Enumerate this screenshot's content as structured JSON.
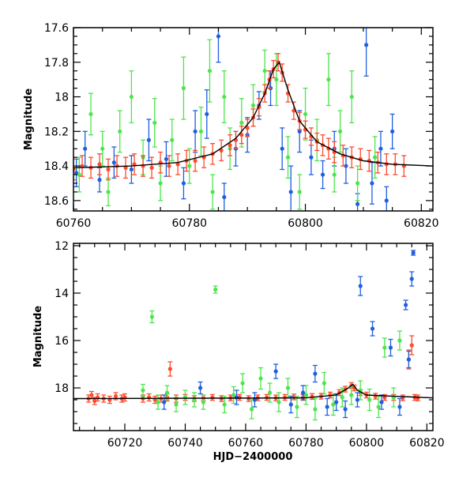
{
  "colors": {
    "blue": "#1f5fe0",
    "green": "#4ce64c",
    "red": "#ff4a2e",
    "model": "#000000",
    "frame": "#000000"
  },
  "chart_data": [
    {
      "type": "scatter",
      "title": "",
      "xlabel": "",
      "ylabel": "Magnitude",
      "xlim": [
        60760,
        60822
      ],
      "ylim": [
        18.66,
        17.6
      ],
      "y_inverted": true,
      "x_ticks": [
        60760,
        60780,
        60800,
        60820
      ],
      "y_ticks": [
        17.6,
        17.8,
        18,
        18.2,
        18.4,
        18.6
      ],
      "y_tick_labels": [
        "17.6",
        "17.8",
        "18",
        "18.2",
        "18.4",
        "18.6"
      ],
      "grid": false,
      "legend": "none",
      "error_bars": true,
      "model_curve": {
        "x": [
          60760,
          60770,
          60778,
          60784,
          60788,
          60791,
          60793,
          60794.5,
          60795.5,
          60797,
          60799,
          60802,
          60806,
          60810,
          60815,
          60822
        ],
        "y": [
          18.41,
          18.4,
          18.38,
          18.33,
          18.24,
          18.12,
          17.98,
          17.84,
          17.8,
          17.96,
          18.14,
          18.26,
          18.33,
          18.37,
          18.39,
          18.4
        ]
      },
      "series": [
        {
          "color": "blue",
          "x": [
            60760.5,
            60762,
            60764.5,
            60767,
            60770,
            60773,
            60776,
            60779,
            60781,
            60783,
            60785,
            60786,
            60788,
            60790,
            60792,
            60794,
            60796,
            60797.5,
            60799,
            60801,
            60803,
            60805,
            60807,
            60809,
            60810.5,
            60811.5,
            60813,
            60814,
            60815
          ],
          "y": [
            18.44,
            18.3,
            18.48,
            18.38,
            18.42,
            18.25,
            18.36,
            18.5,
            18.2,
            18.1,
            17.65,
            18.58,
            18.3,
            18.22,
            18.05,
            17.95,
            18.3,
            18.55,
            18.2,
            18.35,
            18.45,
            18.3,
            18.4,
            18.62,
            17.7,
            18.5,
            18.3,
            18.6,
            18.2
          ],
          "yerr": [
            0.08,
            0.1,
            0.07,
            0.09,
            0.08,
            0.12,
            0.1,
            0.09,
            0.12,
            0.14,
            0.15,
            0.08,
            0.1,
            0.1,
            0.08,
            0.1,
            0.12,
            0.15,
            0.12,
            0.1,
            0.08,
            0.1,
            0.1,
            0.06,
            0.18,
            0.12,
            0.1,
            0.08,
            0.1
          ]
        },
        {
          "color": "green",
          "x": [
            60761,
            60763,
            60765,
            60766,
            60768,
            60770,
            60772,
            60774,
            60775,
            60777,
            60779,
            60780,
            60782,
            60783.5,
            60784,
            60786,
            60787,
            60789,
            60791,
            60793,
            60795,
            60797,
            60799,
            60800,
            60802,
            60804,
            60805,
            60806,
            60808,
            60809,
            60812
          ],
          "y": [
            18.45,
            18.1,
            18.3,
            18.55,
            18.2,
            18.0,
            18.35,
            18.15,
            18.5,
            18.25,
            17.95,
            18.4,
            18.2,
            17.85,
            18.55,
            18.0,
            18.3,
            18.15,
            18.05,
            17.85,
            17.9,
            18.35,
            18.55,
            18.1,
            18.25,
            17.9,
            18.45,
            18.2,
            18.0,
            18.5,
            18.35
          ],
          "yerr": [
            0.1,
            0.12,
            0.1,
            0.08,
            0.12,
            0.15,
            0.1,
            0.14,
            0.1,
            0.12,
            0.18,
            0.1,
            0.14,
            0.18,
            0.1,
            0.15,
            0.12,
            0.14,
            0.12,
            0.12,
            0.15,
            0.12,
            0.1,
            0.15,
            0.12,
            0.15,
            0.1,
            0.12,
            0.15,
            0.1,
            0.12
          ]
        },
        {
          "color": "red",
          "x": [
            60760,
            60761.5,
            60763,
            60764.5,
            60766,
            60767.5,
            60769,
            60770.5,
            60772,
            60773.5,
            60775,
            60776.5,
            60778,
            60779.5,
            60781,
            60782.5,
            60784,
            60785.5,
            60787,
            60788,
            60789,
            60790,
            60791,
            60792,
            60793,
            60793.8,
            60794.5,
            60795.3,
            60796,
            60797,
            60798,
            60799,
            60800,
            60801,
            60802,
            60803,
            60804,
            60805,
            60806.5,
            60808,
            60809.5,
            60811,
            60812.5,
            60814,
            60815.5,
            60817
          ],
          "y": [
            18.42,
            18.4,
            18.41,
            18.39,
            18.42,
            18.4,
            18.41,
            18.39,
            18.4,
            18.41,
            18.38,
            18.4,
            18.39,
            18.37,
            18.37,
            18.35,
            18.33,
            18.31,
            18.28,
            18.25,
            18.22,
            18.18,
            18.12,
            18.06,
            17.98,
            17.9,
            17.84,
            17.8,
            17.86,
            17.98,
            18.08,
            18.14,
            18.19,
            18.23,
            18.26,
            18.28,
            18.3,
            18.32,
            18.34,
            18.35,
            18.36,
            18.37,
            18.38,
            18.39,
            18.39,
            18.4
          ],
          "yerr": [
            0.06,
            0.06,
            0.06,
            0.06,
            0.06,
            0.06,
            0.06,
            0.06,
            0.06,
            0.06,
            0.06,
            0.06,
            0.06,
            0.06,
            0.06,
            0.06,
            0.06,
            0.06,
            0.06,
            0.05,
            0.05,
            0.05,
            0.05,
            0.05,
            0.05,
            0.05,
            0.05,
            0.05,
            0.05,
            0.05,
            0.05,
            0.05,
            0.05,
            0.05,
            0.05,
            0.06,
            0.06,
            0.06,
            0.06,
            0.06,
            0.06,
            0.06,
            0.06,
            0.06,
            0.06,
            0.06
          ]
        }
      ]
    },
    {
      "type": "scatter",
      "title": "",
      "xlabel": "HJD−2400000",
      "ylabel": "Magnitude",
      "xlim": [
        60703,
        60822
      ],
      "ylim": [
        19.8,
        11.9
      ],
      "y_inverted": true,
      "x_ticks": [
        60720,
        60740,
        60760,
        60780,
        60800,
        60820
      ],
      "y_ticks": [
        12,
        14,
        16,
        18
      ],
      "y_tick_labels": [
        "12",
        "14",
        "16",
        "18"
      ],
      "grid": false,
      "legend": "none",
      "error_bars": true,
      "model_curve": {
        "x": [
          60703,
          60780,
          60790,
          60794,
          60795.5,
          60797,
          60800,
          60822
        ],
        "y": [
          18.45,
          18.42,
          18.3,
          18.0,
          17.85,
          18.1,
          18.3,
          18.42
        ]
      },
      "series": [
        {
          "color": "red",
          "x": [
            60708,
            60709,
            60710,
            60711,
            60713,
            60715,
            60717,
            60719,
            60720,
            60726,
            60728,
            60730,
            60732,
            60734,
            60735,
            60737,
            60740,
            60743,
            60746,
            60749,
            60752,
            60755,
            60758,
            60761,
            60764,
            60767,
            60770,
            60773,
            60776,
            60779,
            60782,
            60785,
            60788,
            60791,
            60793,
            60795,
            60796,
            60798,
            60800,
            60803,
            60806,
            60809,
            60812,
            60814,
            60815,
            60816,
            60817
          ],
          "y": [
            18.45,
            18.3,
            18.55,
            18.4,
            18.45,
            18.5,
            18.35,
            18.45,
            18.4,
            18.45,
            18.4,
            18.5,
            18.45,
            18.4,
            17.2,
            18.45,
            18.4,
            18.45,
            18.42,
            18.4,
            18.45,
            18.42,
            18.4,
            18.45,
            18.42,
            18.4,
            18.42,
            18.4,
            18.38,
            18.4,
            18.36,
            18.35,
            18.3,
            18.2,
            18.05,
            17.9,
            18.0,
            18.2,
            18.3,
            18.35,
            18.4,
            18.4,
            18.42,
            16.8,
            16.2,
            18.4,
            18.42
          ],
          "yerr": [
            0.15,
            0.15,
            0.15,
            0.15,
            0.15,
            0.15,
            0.15,
            0.15,
            0.15,
            0.15,
            0.15,
            0.15,
            0.15,
            0.15,
            0.3,
            0.15,
            0.12,
            0.12,
            0.12,
            0.12,
            0.12,
            0.12,
            0.12,
            0.12,
            0.12,
            0.12,
            0.12,
            0.12,
            0.12,
            0.12,
            0.12,
            0.12,
            0.12,
            0.12,
            0.12,
            0.12,
            0.12,
            0.12,
            0.12,
            0.12,
            0.12,
            0.12,
            0.12,
            0.4,
            0.4,
            0.12,
            0.12
          ]
        },
        {
          "color": "green",
          "x": [
            60726,
            60729,
            60731,
            60734,
            60737,
            60740,
            60743,
            60746,
            60750,
            60753,
            60756,
            60759,
            60762,
            60765,
            60768,
            60771,
            60774,
            60777,
            60780,
            60783,
            60786,
            60789,
            60792,
            60795,
            60798,
            60801,
            60804,
            60806,
            60809,
            60811
          ],
          "y": [
            18.1,
            15.0,
            18.6,
            18.2,
            18.7,
            18.4,
            18.5,
            18.6,
            13.85,
            18.7,
            18.3,
            17.8,
            18.9,
            17.6,
            18.2,
            18.6,
            18.0,
            18.8,
            18.3,
            18.9,
            17.8,
            18.7,
            18.4,
            18.3,
            18.1,
            18.5,
            18.8,
            16.3,
            18.4,
            16.0
          ],
          "yerr": [
            0.25,
            0.25,
            0.3,
            0.3,
            0.3,
            0.3,
            0.3,
            0.3,
            0.15,
            0.35,
            0.35,
            0.4,
            0.4,
            0.45,
            0.4,
            0.4,
            0.4,
            0.45,
            0.4,
            0.45,
            0.45,
            0.45,
            0.4,
            0.4,
            0.4,
            0.45,
            0.45,
            0.4,
            0.4,
            0.4
          ]
        },
        {
          "color": "blue",
          "x": [
            60733,
            60745,
            60757,
            60763,
            60770,
            60775,
            60779,
            60783,
            60787,
            60790,
            60793,
            60797,
            60798,
            60802,
            60805,
            60808,
            60811,
            60813,
            60814,
            60815,
            60815.5
          ],
          "y": [
            18.6,
            18.0,
            18.4,
            18.5,
            17.3,
            18.7,
            18.2,
            17.4,
            18.8,
            18.6,
            18.9,
            18.5,
            13.7,
            15.5,
            18.6,
            16.3,
            18.8,
            14.5,
            16.8,
            13.4,
            12.3
          ],
          "yerr": [
            0.3,
            0.25,
            0.3,
            0.3,
            0.3,
            0.35,
            0.3,
            0.35,
            0.35,
            0.35,
            0.35,
            0.3,
            0.4,
            0.3,
            0.3,
            0.35,
            0.35,
            0.2,
            0.35,
            0.3,
            0.1
          ]
        }
      ]
    }
  ]
}
